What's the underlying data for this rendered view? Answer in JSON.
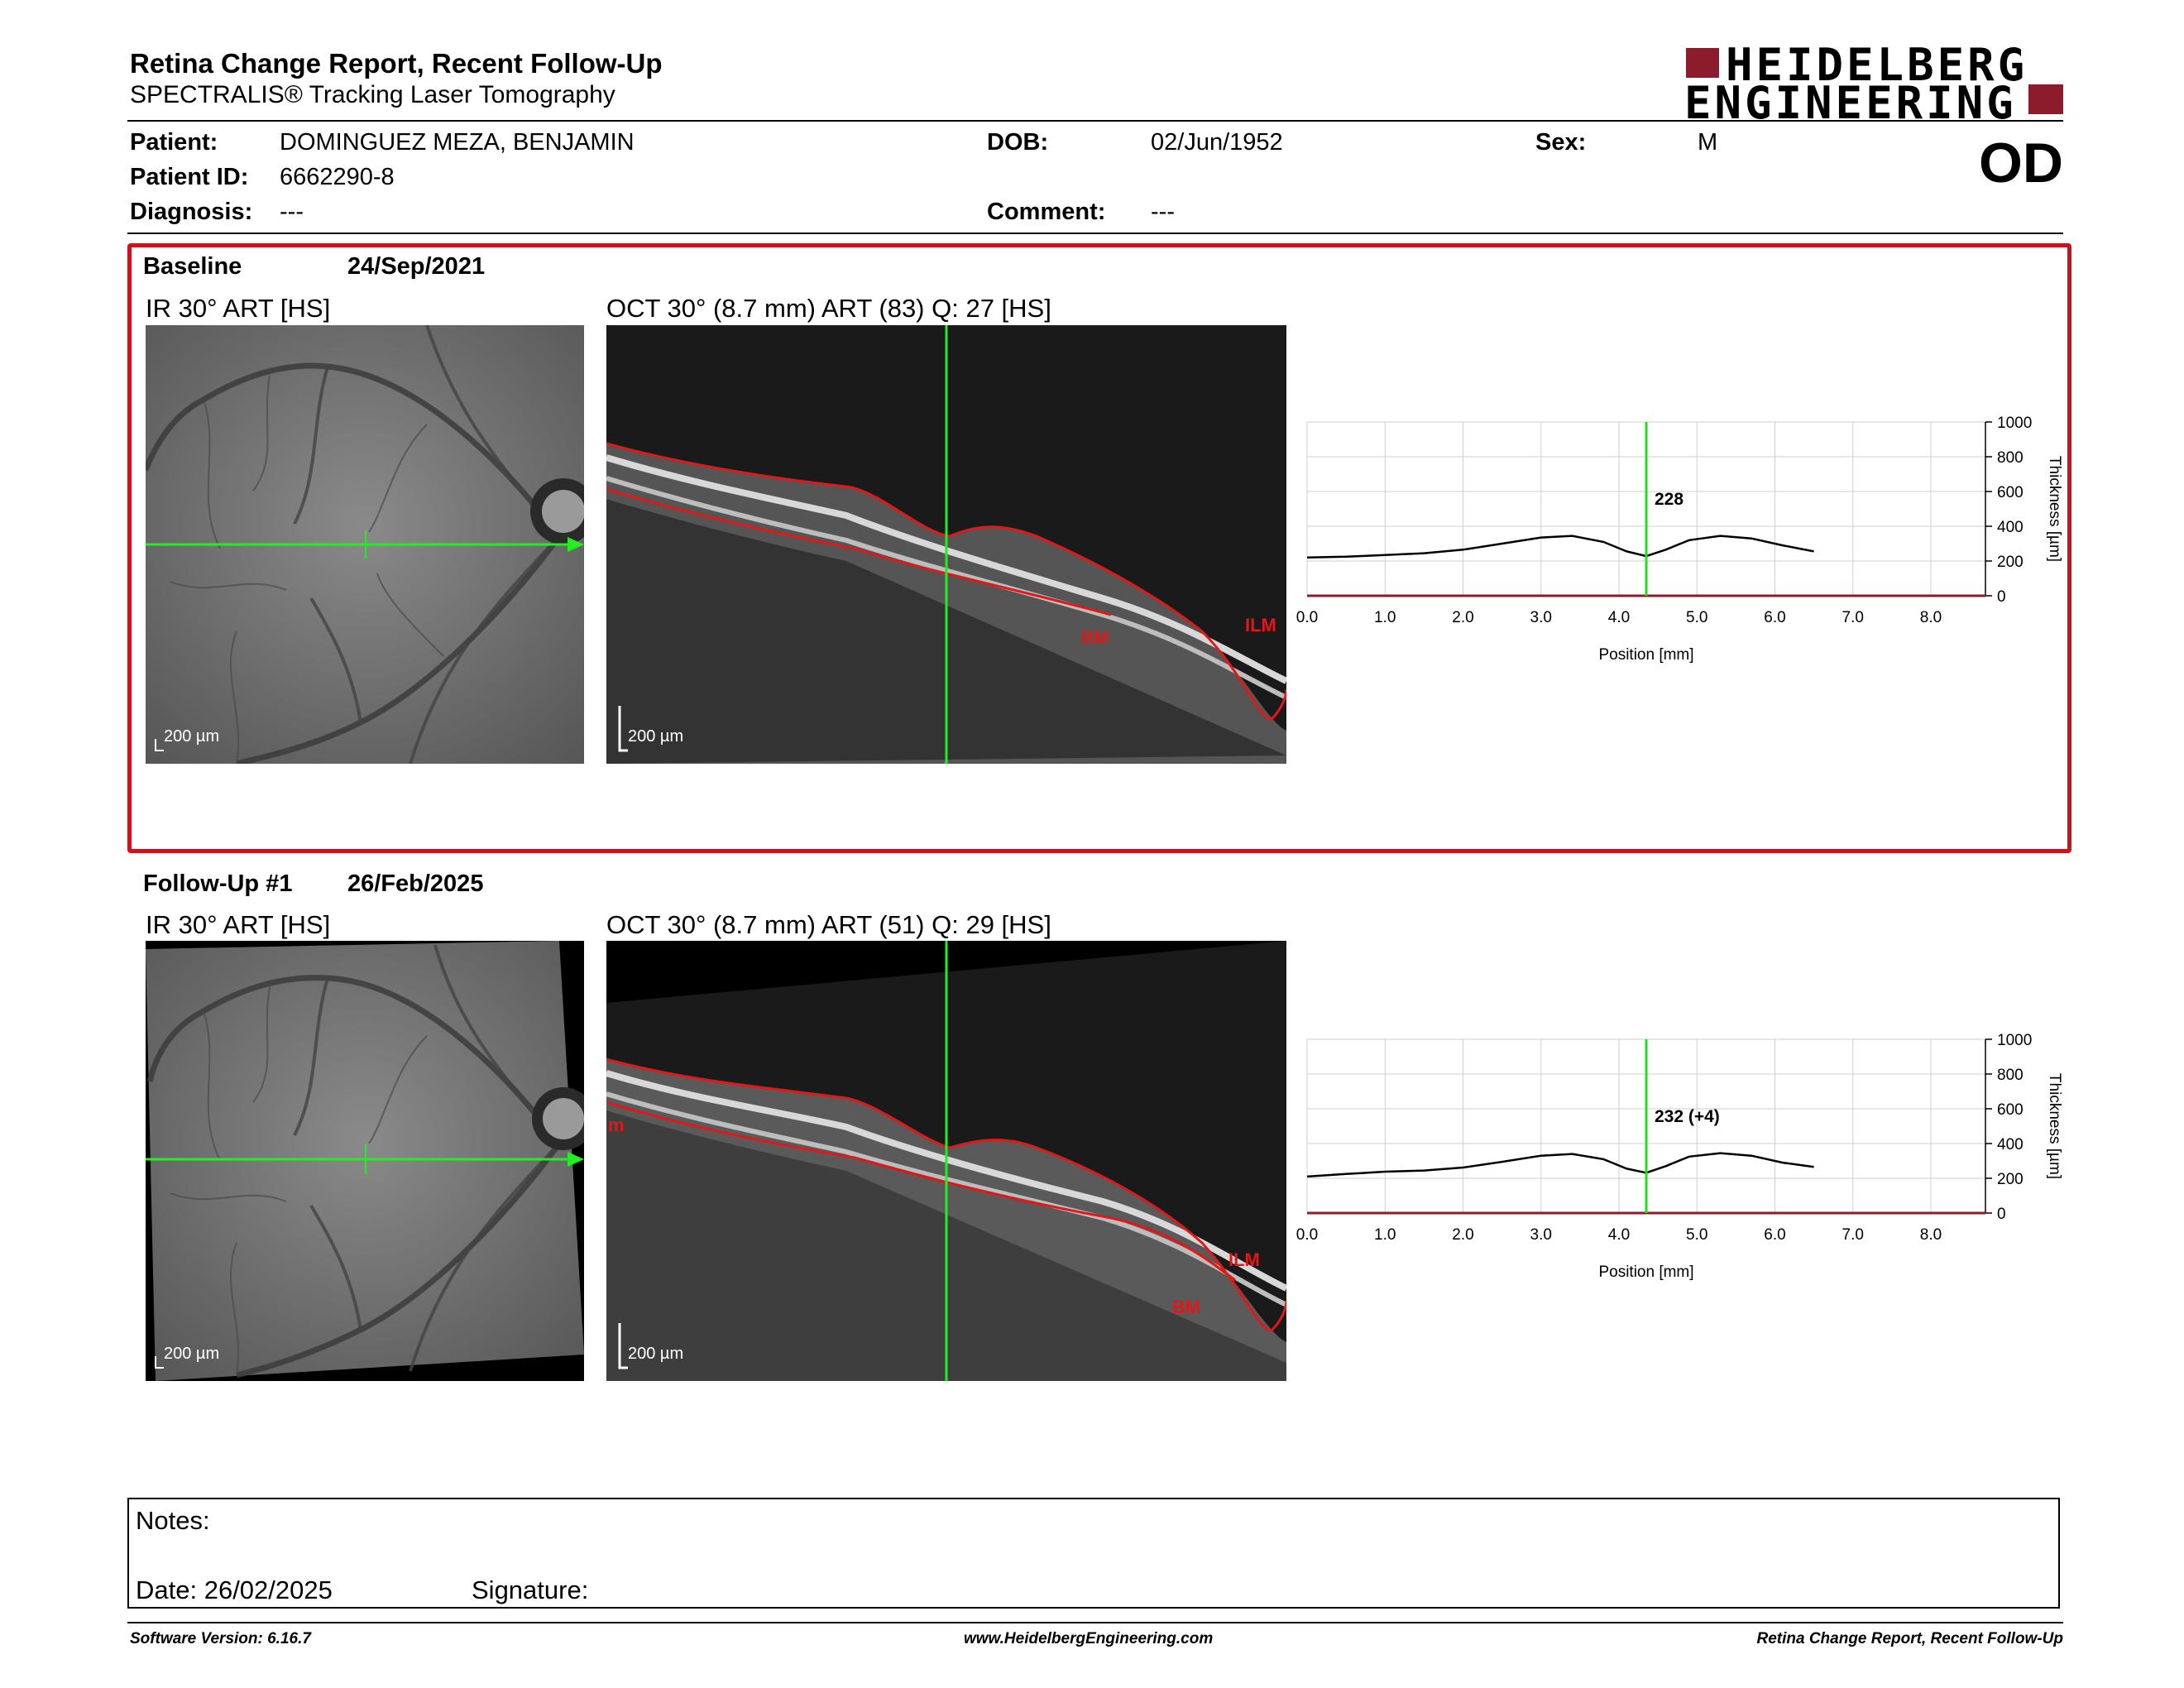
{
  "header": {
    "title": "Retina Change Report, Recent Follow-Up",
    "subtitle": "SPECTRALIS® Tracking Laser Tomography",
    "logo_line1": "HEIDELBERG",
    "logo_line2": "ENGINEERING",
    "eye": "OD"
  },
  "patient": {
    "name_label": "Patient:",
    "name": "DOMINGUEZ MEZA, BENJAMIN",
    "id_label": "Patient ID:",
    "id": "6662290-8",
    "diagnosis_label": "Diagnosis:",
    "diagnosis": "---",
    "dob_label": "DOB:",
    "dob": "02/Jun/1952",
    "comment_label": "Comment:",
    "comment": "---",
    "sex_label": "Sex:",
    "sex": "M"
  },
  "baseline": {
    "label": "Baseline",
    "date": "24/Sep/2021",
    "ir_caption": "IR 30° ART [HS]",
    "oct_caption": "OCT 30° (8.7 mm) ART (83) Q: 27 [HS]",
    "ir_scale": "200 µm",
    "oct_scale": "200 µm",
    "label_ilm": "ILM",
    "label_bm": "BM"
  },
  "followup": {
    "label": "Follow-Up #1",
    "date": "26/Feb/2025",
    "ir_caption": "IR 30° ART [HS]",
    "oct_caption": "OCT 30° (8.7 mm) ART (51) Q: 29 [HS]",
    "ir_scale": "200 µm",
    "oct_scale": "200 µm",
    "label_ilm": "ILM",
    "label_bm": "BM",
    "label_m": "m"
  },
  "chart_data": [
    {
      "type": "line",
      "xlabel": "Position [mm]",
      "ylabel": "Thickness [µm]",
      "xlim": [
        0,
        8.7
      ],
      "ylim": [
        0,
        1000
      ],
      "xticks": [
        "0.0",
        "1.0",
        "2.0",
        "3.0",
        "4.0",
        "5.0",
        "6.0",
        "7.0",
        "8.0"
      ],
      "yticks": [
        "0",
        "200",
        "400",
        "600",
        "800",
        "1000"
      ],
      "marker_x": 4.35,
      "marker_label": "228",
      "marker_color": "#22dd22",
      "series": [
        {
          "x": [
            0.0,
            0.5,
            1.0,
            1.5,
            2.0,
            2.5,
            3.0,
            3.4,
            3.8,
            4.1,
            4.35,
            4.6,
            4.9,
            5.3,
            5.7,
            6.1,
            6.5
          ],
          "values": [
            220,
            225,
            235,
            245,
            265,
            300,
            335,
            345,
            310,
            255,
            228,
            265,
            320,
            345,
            330,
            290,
            255
          ]
        }
      ]
    },
    {
      "type": "line",
      "xlabel": "Position [mm]",
      "ylabel": "Thickness [µm]",
      "xlim": [
        0,
        8.7
      ],
      "ylim": [
        0,
        1000
      ],
      "xticks": [
        "0.0",
        "1.0",
        "2.0",
        "3.0",
        "4.0",
        "5.0",
        "6.0",
        "7.0",
        "8.0"
      ],
      "yticks": [
        "0",
        "200",
        "400",
        "600",
        "800",
        "1000"
      ],
      "marker_x": 4.35,
      "marker_label": "232 (+4)",
      "marker_color": "#22dd22",
      "series": [
        {
          "x": [
            0.0,
            0.5,
            1.0,
            1.5,
            2.0,
            2.5,
            3.0,
            3.4,
            3.8,
            4.1,
            4.35,
            4.6,
            4.9,
            5.3,
            5.7,
            6.1,
            6.5
          ],
          "values": [
            210,
            225,
            238,
            245,
            262,
            295,
            330,
            340,
            310,
            255,
            232,
            270,
            325,
            345,
            330,
            290,
            265
          ]
        }
      ]
    }
  ],
  "notes": {
    "notes_label": "Notes:",
    "date_label": "Date: 26/02/2025",
    "signature_label": "Signature:"
  },
  "footer": {
    "software": "Software Version: 6.16.7",
    "website": "www.HeidelbergEngineering.com",
    "report": "Retina Change Report, Recent Follow-Up"
  }
}
